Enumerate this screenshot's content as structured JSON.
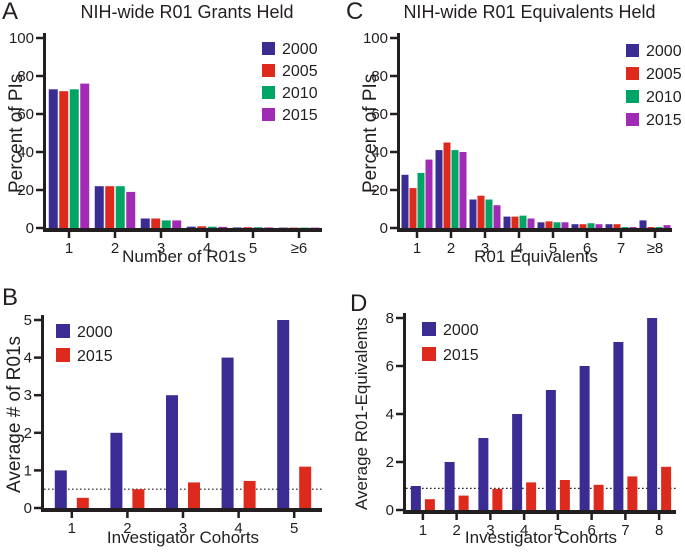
{
  "figure": {
    "background": "#ffffff",
    "text_color": "#231f20",
    "axis_color": "#231f20"
  },
  "chart_data": [
    {
      "panel": "A",
      "type": "bar",
      "title": "NIH-wide R01 Grants Held",
      "xlabel": "Number of R01s",
      "ylabel": "Percent of PIs",
      "categories": [
        "1",
        "2",
        "3",
        "4",
        "5",
        "≥6"
      ],
      "series": [
        {
          "name": "2000",
          "color": "#3a2c92",
          "values": [
            73,
            22,
            5,
            0.7,
            0.3,
            0.2
          ]
        },
        {
          "name": "2005",
          "color": "#dd2a1c",
          "values": [
            72,
            22,
            5,
            0.9,
            0.4,
            0.2
          ]
        },
        {
          "name": "2010",
          "color": "#00a565",
          "values": [
            73,
            22,
            4,
            0.7,
            0.4,
            0.2
          ]
        },
        {
          "name": "2015",
          "color": "#a22bb5",
          "values": [
            76,
            19,
            4,
            0.6,
            0.3,
            0.2
          ]
        }
      ],
      "ylim": [
        0,
        100
      ],
      "yticks": [
        0,
        20,
        40,
        60,
        80,
        100
      ],
      "legend_position": "top-right",
      "grid": false
    },
    {
      "panel": "B",
      "type": "bar",
      "title": "",
      "xlabel": "Investigator Cohorts",
      "ylabel": "Average # of R01s",
      "categories": [
        "1",
        "2",
        "3",
        "4",
        "5"
      ],
      "series": [
        {
          "name": "2000",
          "color": "#3a2c92",
          "values": [
            1.0,
            2.0,
            3.0,
            4.0,
            5.0
          ]
        },
        {
          "name": "2015",
          "color": "#dd2a1c",
          "values": [
            0.27,
            0.5,
            0.68,
            0.72,
            1.1
          ]
        }
      ],
      "ylim": [
        0,
        5
      ],
      "yticks": [
        0,
        1,
        2,
        3,
        4,
        5
      ],
      "dotted_reference_line": 0.5,
      "legend_position": "top-left",
      "grid": false
    },
    {
      "panel": "C",
      "type": "bar",
      "title": "NIH-wide R01 Equivalents Held",
      "xlabel": "R01 Equivalents",
      "ylabel": "Percent of PIs",
      "categories": [
        "1",
        "2",
        "3",
        "4",
        "5",
        "6",
        "7",
        "≥8"
      ],
      "series": [
        {
          "name": "2000",
          "color": "#3a2c92",
          "values": [
            28,
            41,
            15,
            6,
            3,
            2,
            2,
            4
          ]
        },
        {
          "name": "2005",
          "color": "#dd2a1c",
          "values": [
            21,
            45,
            17,
            6,
            3.5,
            2,
            2,
            0.5
          ]
        },
        {
          "name": "2010",
          "color": "#00a565",
          "values": [
            29,
            41,
            15,
            6.5,
            3,
            2.5,
            0.5,
            0.5
          ]
        },
        {
          "name": "2015",
          "color": "#a22bb5",
          "values": [
            36,
            40,
            12,
            5,
            3,
            2,
            0.5,
            1.5
          ]
        }
      ],
      "ylim": [
        0,
        100
      ],
      "yticks": [
        0,
        20,
        40,
        60,
        80,
        100
      ],
      "legend_position": "top-right",
      "grid": false
    },
    {
      "panel": "D",
      "type": "bar",
      "title": "",
      "xlabel": "Investigator Cohorts",
      "ylabel": "Average R01-Equivalents",
      "categories": [
        "1",
        "2",
        "3",
        "4",
        "5",
        "6",
        "7",
        "8"
      ],
      "series": [
        {
          "name": "2000",
          "color": "#3a2c92",
          "values": [
            1,
            2,
            3,
            4,
            5,
            6,
            7,
            8
          ]
        },
        {
          "name": "2015",
          "color": "#dd2a1c",
          "values": [
            0.45,
            0.6,
            0.88,
            1.15,
            1.25,
            1.05,
            1.4,
            1.8
          ]
        }
      ],
      "ylim": [
        0,
        8
      ],
      "yticks": [
        0,
        2,
        4,
        6,
        8
      ],
      "dotted_reference_line": 0.9,
      "legend_position": "top-left",
      "grid": false
    }
  ]
}
